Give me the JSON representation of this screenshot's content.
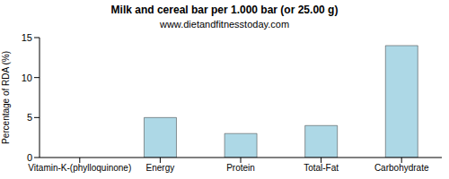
{
  "chart_data": {
    "type": "bar",
    "title": "Milk and cereal bar per 1.000 bar (or 25.00 g)",
    "subtitle": "www.dietandfitnesstoday.com",
    "y_label": "Percentage of RDA (%)",
    "categories": [
      "Vitamin-K-(phylloquinone)",
      "Energy",
      "Protein",
      "Total-Fat",
      "Carbohydrate"
    ],
    "values": [
      0,
      5,
      3,
      4,
      14
    ],
    "color": "#add8e6",
    "ylim": [
      0,
      15
    ],
    "yticks": [
      0,
      5,
      10,
      15
    ],
    "grid": false
  }
}
